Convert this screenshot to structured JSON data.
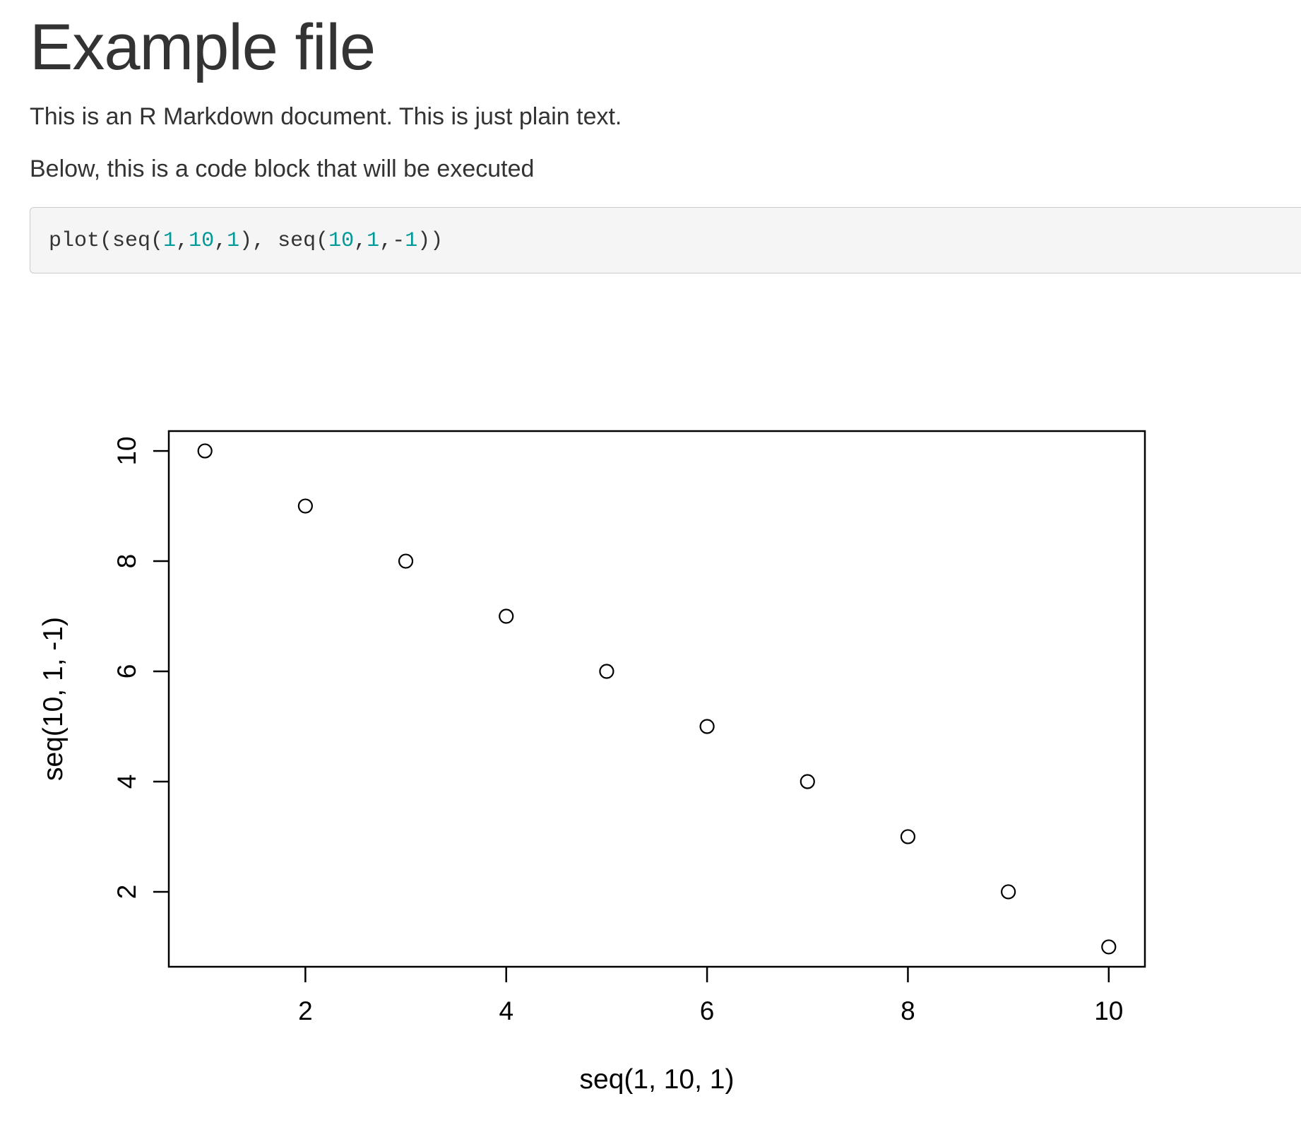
{
  "document": {
    "title": "Example file",
    "paragraphs": [
      "This is an R Markdown document. This is just plain text.",
      "Below, this is a code block that will be executed"
    ]
  },
  "code_block": {
    "language": "r",
    "text": "plot(seq(1,10,1), seq(10,1,-1))",
    "tokens": [
      {
        "text": "plot(seq(",
        "kind": "plain"
      },
      {
        "text": "1",
        "kind": "num"
      },
      {
        "text": ",",
        "kind": "plain"
      },
      {
        "text": "10",
        "kind": "num"
      },
      {
        "text": ",",
        "kind": "plain"
      },
      {
        "text": "1",
        "kind": "num"
      },
      {
        "text": "), seq(",
        "kind": "plain"
      },
      {
        "text": "10",
        "kind": "num"
      },
      {
        "text": ",",
        "kind": "plain"
      },
      {
        "text": "1",
        "kind": "num"
      },
      {
        "text": ",-",
        "kind": "plain"
      },
      {
        "text": "1",
        "kind": "num"
      },
      {
        "text": "))",
        "kind": "plain"
      }
    ],
    "number_color": "#009999"
  },
  "chart_data": {
    "type": "scatter",
    "marker": "open-circle",
    "title": "",
    "xlabel": "seq(1, 10, 1)",
    "ylabel": "seq(10, 1, -1)",
    "x": [
      1,
      2,
      3,
      4,
      5,
      6,
      7,
      8,
      9,
      10
    ],
    "y": [
      10,
      9,
      8,
      7,
      6,
      5,
      4,
      3,
      2,
      1
    ],
    "xlim": [
      0.64,
      10.36
    ],
    "ylim": [
      0.64,
      10.36
    ],
    "xticks": [
      2,
      4,
      6,
      8,
      10
    ],
    "yticks": [
      2,
      4,
      6,
      8,
      10
    ],
    "grid": false,
    "legend": "none"
  }
}
